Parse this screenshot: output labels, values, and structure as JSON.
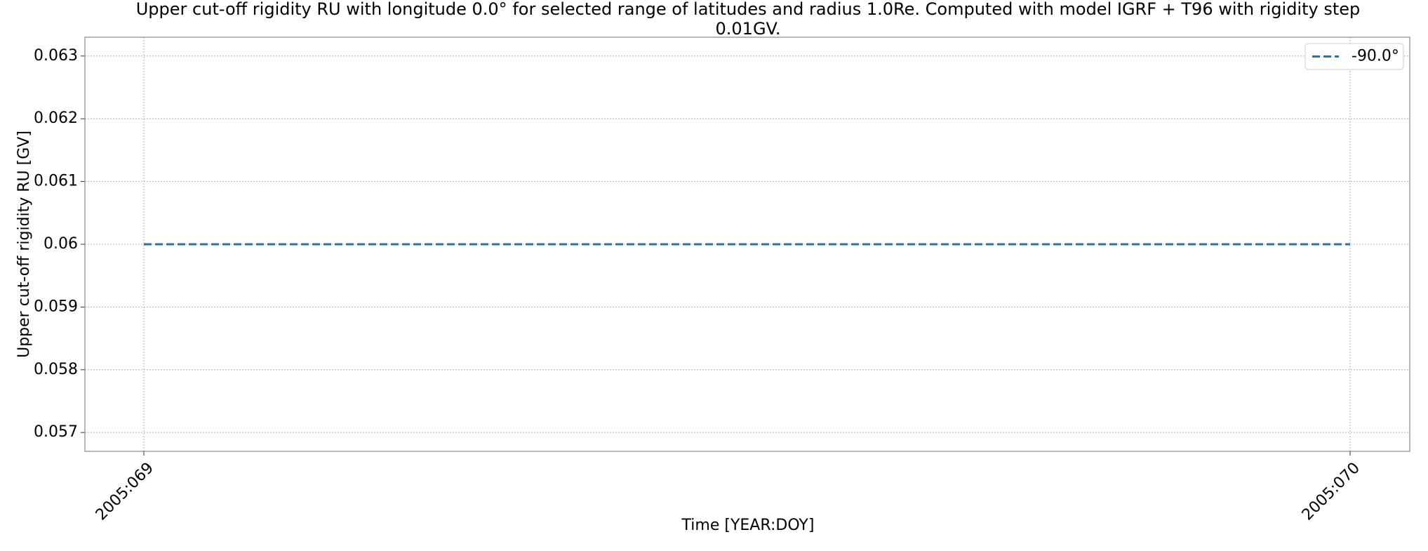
{
  "chart_data": {
    "type": "line",
    "title": [
      "Upper cut-off rigidity RU with longitude 0.0° for selected range of latitudes and radius 1.0Re. Computed with model IGRF + T96 with rigidity step",
      "0.01GV."
    ],
    "x_label": "Time [YEAR:DOY]",
    "y_label": "Upper cut-off rigidity RU [GV]",
    "x": [
      "2005:069",
      "2005:070"
    ],
    "series": [
      {
        "name": "-90.0°",
        "color": "#1f77b4",
        "values": [
          0.06,
          0.06
        ]
      }
    ],
    "ylim": [
      0.0567,
      0.0633
    ],
    "yticks": [
      0.057,
      0.058,
      0.059,
      0.06,
      0.061,
      0.062,
      0.063
    ],
    "grid": true,
    "legend": "upper right",
    "line_style": "dashed"
  }
}
